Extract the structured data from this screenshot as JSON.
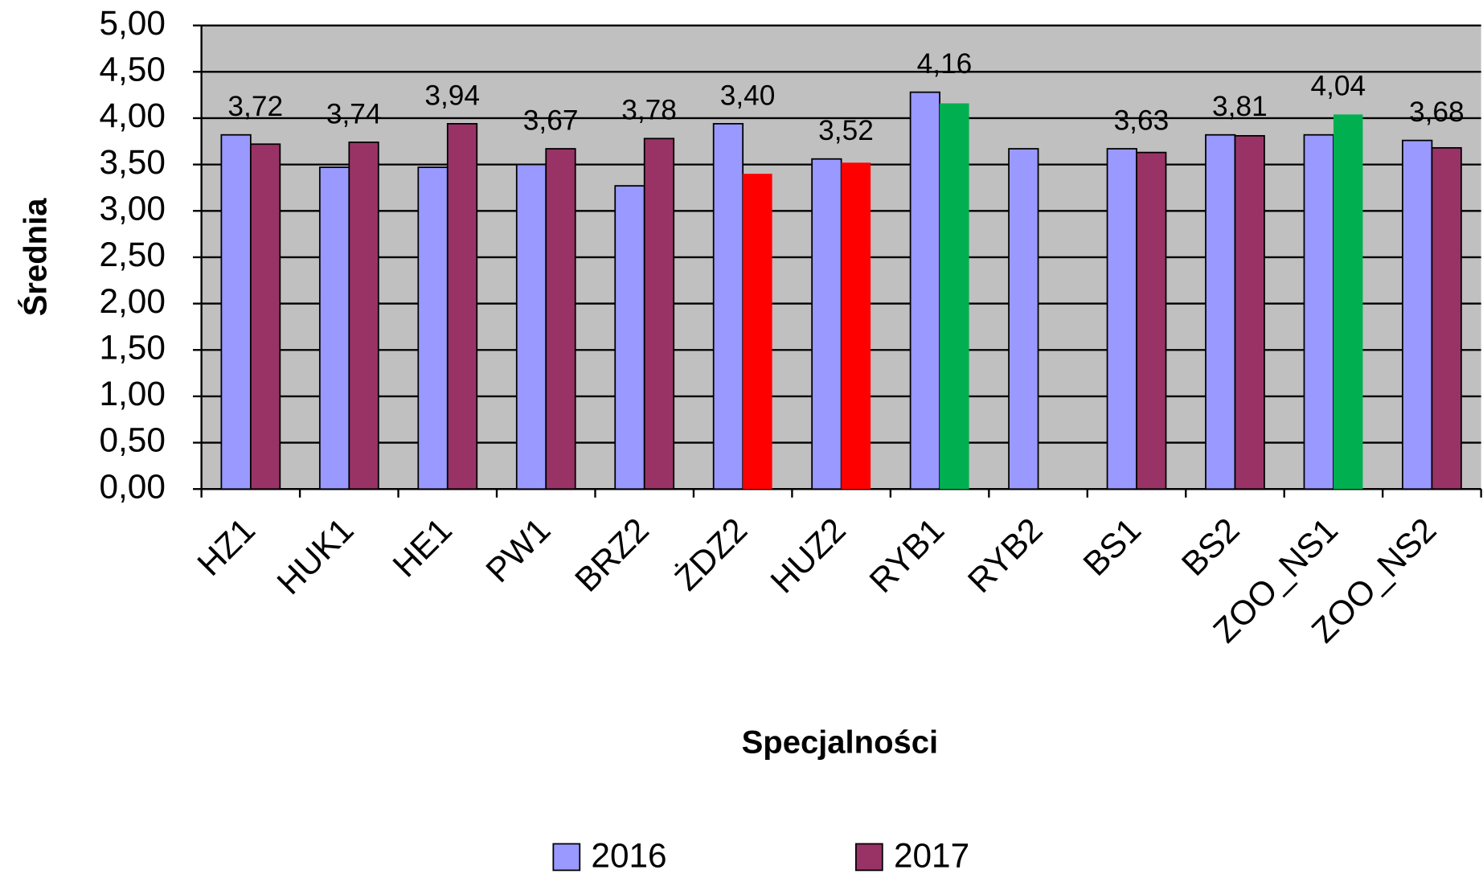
{
  "chart_data": {
    "type": "bar",
    "x_label": "Specjalności",
    "y_label": "Średnia",
    "categories": [
      "HZ1",
      "HUK1",
      "HE1",
      "PW1",
      "BRZ2",
      "ŻDZ2",
      "HUZ2",
      "RYB1",
      "RYB2",
      "BS1",
      "BS2",
      "ZOO_NS1",
      "ZOO_NS2"
    ],
    "series": [
      {
        "name": "2016",
        "color": "#9999ff",
        "values": [
          3.82,
          3.47,
          3.47,
          3.5,
          3.27,
          3.94,
          3.56,
          4.28,
          3.67,
          3.67,
          3.82,
          3.82,
          3.76
        ]
      },
      {
        "name": "2017",
        "color": "#993366",
        "colors": [
          "#993366",
          "#993366",
          "#993366",
          "#993366",
          "#993366",
          "#ff0000",
          "#ff0000",
          "#00b050",
          "#993366",
          "#993366",
          "#993366",
          "#00b050",
          "#993366"
        ],
        "values": [
          3.72,
          3.74,
          3.94,
          3.67,
          3.78,
          3.4,
          3.52,
          4.16,
          null,
          3.63,
          3.81,
          4.04,
          3.68
        ],
        "value_labels": [
          "3,72",
          "3,74",
          "3,94",
          "3,67",
          "3,78",
          "3,40",
          "3,52",
          "4,16",
          null,
          "3,63",
          "3,81",
          "4,04",
          "3,68"
        ]
      }
    ],
    "ylim": [
      0,
      5
    ],
    "yticks": [
      {
        "value": 0,
        "label": "0,00"
      },
      {
        "value": 0.5,
        "label": "0,50"
      },
      {
        "value": 1,
        "label": "1,00"
      },
      {
        "value": 1.5,
        "label": "1,50"
      },
      {
        "value": 2,
        "label": "2,00"
      },
      {
        "value": 2.5,
        "label": "2,50"
      },
      {
        "value": 3,
        "label": "3,00"
      },
      {
        "value": 3.5,
        "label": "3,50"
      },
      {
        "value": 4,
        "label": "4,00"
      },
      {
        "value": 4.5,
        "label": "4,50"
      },
      {
        "value": 5,
        "label": "5,00"
      }
    ],
    "grid": true,
    "plot_background": "#c0c0c0",
    "legend": "bottom"
  }
}
